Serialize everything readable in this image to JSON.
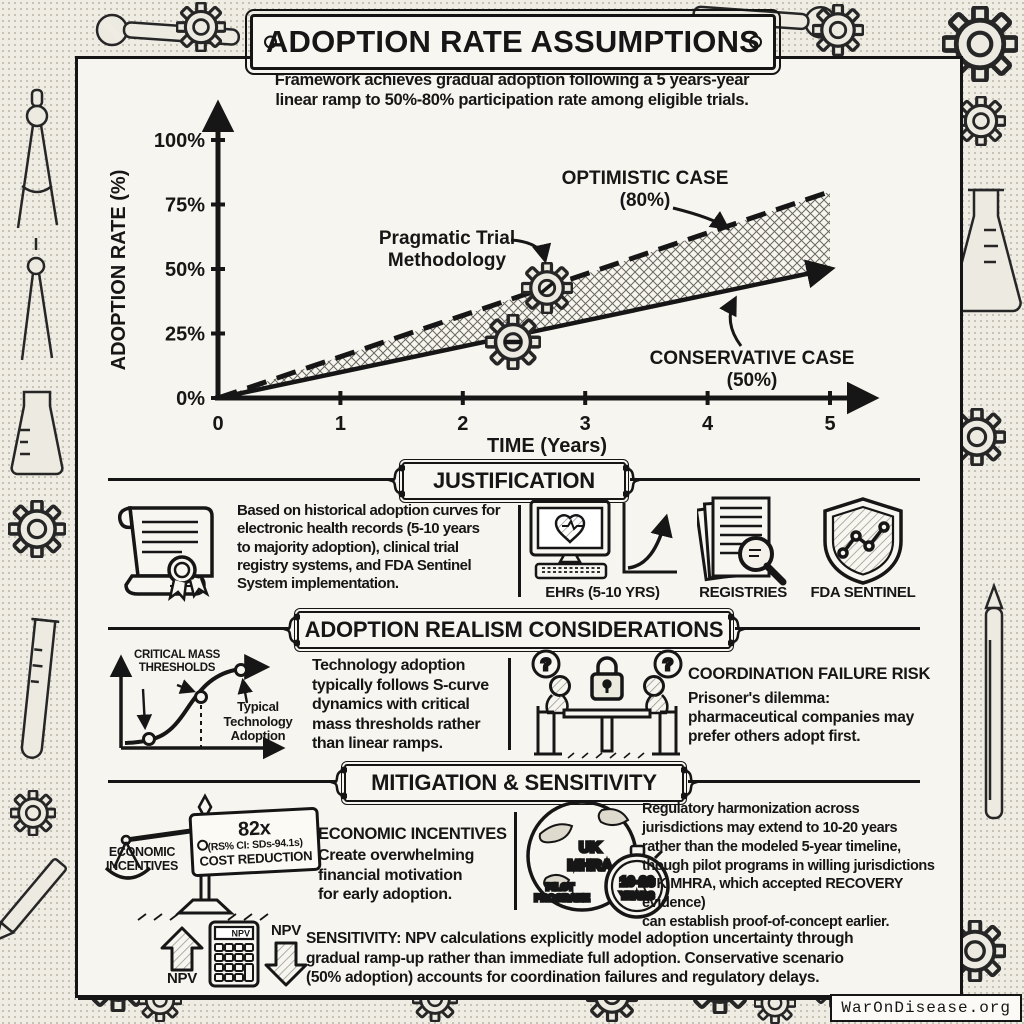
{
  "page": {
    "title": "ADOPTION RATE ASSUMPTIONS",
    "subtitle": "Framework achieves gradual adoption following a 5 years-year\nlinear ramp to 50%-80% participation rate among eligible trials.",
    "watermark": "WarOnDisease.org"
  },
  "chart_data": {
    "type": "line",
    "title": "",
    "xlabel": "TIME (Years)",
    "ylabel": "ADOPTION RATE (%)",
    "x_ticks": [
      "0",
      "1",
      "2",
      "3",
      "4",
      "5"
    ],
    "y_ticks": [
      "0%",
      "25%",
      "50%",
      "75%",
      "100%"
    ],
    "x_tick_values": [
      0,
      1,
      2,
      3,
      4,
      5
    ],
    "y_tick_values": [
      0,
      25,
      50,
      75,
      100
    ],
    "xlim": [
      0,
      5
    ],
    "ylim": [
      0,
      100
    ],
    "grid": false,
    "legend_position": "inline-annotations",
    "series": [
      {
        "name": "OPTIMISTIC CASE (80%)",
        "style": "dashed",
        "x": [
          0,
          5
        ],
        "values": [
          0,
          80
        ]
      },
      {
        "name": "CONSERVATIVE CASE (50%)",
        "style": "solid",
        "x": [
          0,
          5
        ],
        "values": [
          0,
          50
        ]
      }
    ],
    "annotations": {
      "pragmatic_l1": "Pragmatic Trial",
      "pragmatic_l2": "Methodology",
      "optimistic_l1": "OPTIMISTIC CASE",
      "optimistic_l2": "(80%)",
      "conservative_l1": "CONSERVATIVE CASE",
      "conservative_l2": "(50%)"
    }
  },
  "justification": {
    "heading": "JUSTIFICATION",
    "body": "Based on historical adoption curves for\nelectronic health records (5-10 years\nto majority adoption), clinical trial\nregistry systems, and FDA Sentinel\nSystem implementation.",
    "icon_labels": {
      "ehr": "EHRs (5-10 YRS)",
      "registries": "REGISTRIES",
      "fda": "FDA SENTINEL"
    }
  },
  "realism": {
    "heading": "ADOPTION REALISM CONSIDERATIONS",
    "scurve_label_top": "CRITICAL MASS\nTHRESHOLDS",
    "scurve_label_right": "Typical\nTechnology\nAdoption",
    "body": "Technology adoption\ntypically follows S-curve\ndynamics with critical\nmass thresholds rather\nthan linear ramps.",
    "risk_heading": "COORDINATION FAILURE RISK",
    "risk_body": "Prisoner's dilemma:\npharmaceutical companies may\nprefer others adopt first."
  },
  "mitigation": {
    "heading": "MITIGATION & SENSITIVITY",
    "scale_label": "ECONOMIC\nINCENTIVES",
    "tag_value": "82x",
    "tag_ci": "(RS% CI: SDs-94.1s)",
    "tag_caption": "COST REDUCTION",
    "econ_heading": "ECONOMIC INCENTIVES",
    "econ_body": "Create overwhelming\nfinancial motivation\nfor early adoption.",
    "globe_line1": "UK",
    "globe_line2": "MHRA",
    "globe_line3": "PILOT",
    "globe_line4": "PROGRANE",
    "watch_value": "10-20",
    "watch_unit": "YEARS",
    "reg_body": "Regulatory harmonization across\njurisdictions may extend to 10-20 years\nrather than the modeled 5-year timeline,\nthough pilot programs in willing jurisdictions\n(UK MHRA, which accepted RECOVERY evidence)\ncan establish proof-of-concept earlier."
  },
  "sensitivity": {
    "npv_up": "NPV",
    "npv_calc": "NPV",
    "npv_down": "NPV",
    "body": "SENSITIVITY: NPV calculations explicitly model adoption uncertainty through\ngradual ramp-up rather than immediate full adoption. Conservative scenario\n(50% adoption) accounts for coordination failures and regulatory delays."
  }
}
